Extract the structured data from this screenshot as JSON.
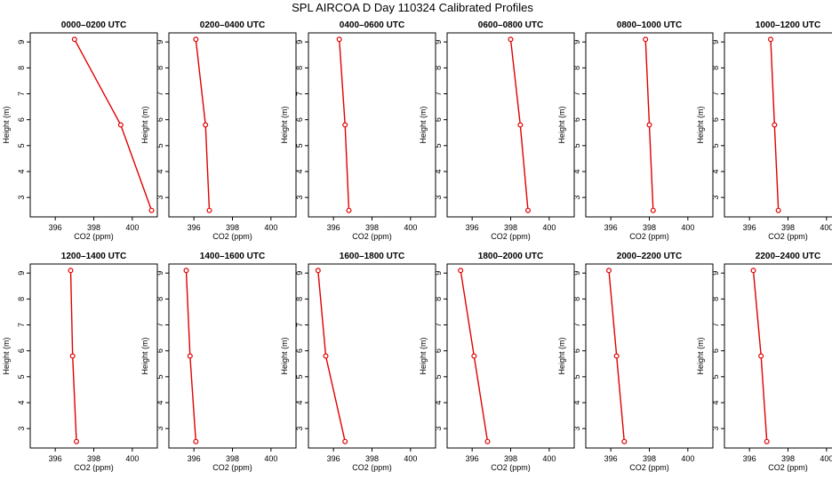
{
  "page": {
    "title": "SPL AIRCOA D  Day 110324  Calibrated Profiles"
  },
  "chart_data": [
    {
      "type": "line",
      "title": "0000–0200 UTC",
      "xlabel": "CO2 (ppm)",
      "ylabel": "Height (m)",
      "xlim": [
        394.7,
        401.3
      ],
      "ylim": [
        2.25,
        9.35
      ],
      "xticks": [
        396,
        398,
        400
      ],
      "yticks": [
        3,
        4,
        5,
        6,
        7,
        8,
        9
      ],
      "series": [
        {
          "x": [
            397.0,
            399.4,
            401.0
          ],
          "y": [
            9.1,
            5.8,
            2.5
          ]
        }
      ]
    },
    {
      "type": "line",
      "title": "0200–0400 UTC",
      "xlabel": "CO2 (ppm)",
      "ylabel": "Height (m)",
      "xlim": [
        394.7,
        401.3
      ],
      "ylim": [
        2.25,
        9.35
      ],
      "xticks": [
        396,
        398,
        400
      ],
      "yticks": [
        3,
        4,
        5,
        6,
        7,
        8,
        9
      ],
      "series": [
        {
          "x": [
            396.1,
            396.6,
            396.8
          ],
          "y": [
            9.1,
            5.8,
            2.5
          ]
        }
      ]
    },
    {
      "type": "line",
      "title": "0400–0600 UTC",
      "xlabel": "CO2 (ppm)",
      "ylabel": "Height (m)",
      "xlim": [
        394.7,
        401.3
      ],
      "ylim": [
        2.25,
        9.35
      ],
      "xticks": [
        396,
        398,
        400
      ],
      "yticks": [
        3,
        4,
        5,
        6,
        7,
        8,
        9
      ],
      "series": [
        {
          "x": [
            396.3,
            396.6,
            396.8
          ],
          "y": [
            9.1,
            5.8,
            2.5
          ]
        }
      ]
    },
    {
      "type": "line",
      "title": "0600–0800 UTC",
      "xlabel": "CO2 (ppm)",
      "ylabel": "Height (m)",
      "xlim": [
        394.7,
        401.3
      ],
      "ylim": [
        2.25,
        9.35
      ],
      "xticks": [
        396,
        398,
        400
      ],
      "yticks": [
        3,
        4,
        5,
        6,
        7,
        8,
        9
      ],
      "series": [
        {
          "x": [
            398.0,
            398.5,
            398.9
          ],
          "y": [
            9.1,
            5.8,
            2.5
          ]
        }
      ]
    },
    {
      "type": "line",
      "title": "0800–1000 UTC",
      "xlabel": "CO2 (ppm)",
      "ylabel": "Height (m)",
      "xlim": [
        394.7,
        401.3
      ],
      "ylim": [
        2.25,
        9.35
      ],
      "xticks": [
        396,
        398,
        400
      ],
      "yticks": [
        3,
        4,
        5,
        6,
        7,
        8,
        9
      ],
      "series": [
        {
          "x": [
            397.8,
            398.0,
            398.2
          ],
          "y": [
            9.1,
            5.8,
            2.5
          ]
        }
      ]
    },
    {
      "type": "line",
      "title": "1000–1200 UTC",
      "xlabel": "CO2 (ppm)",
      "ylabel": "Height (m)",
      "xlim": [
        394.7,
        401.3
      ],
      "ylim": [
        2.25,
        9.35
      ],
      "xticks": [
        396,
        398,
        400
      ],
      "yticks": [
        3,
        4,
        5,
        6,
        7,
        8,
        9
      ],
      "series": [
        {
          "x": [
            397.1,
            397.3,
            397.5
          ],
          "y": [
            9.1,
            5.8,
            2.5
          ]
        }
      ]
    },
    {
      "type": "line",
      "title": "1200–1400 UTC",
      "xlabel": "CO2 (ppm)",
      "ylabel": "Height (m)",
      "xlim": [
        394.7,
        401.3
      ],
      "ylim": [
        2.25,
        9.35
      ],
      "xticks": [
        396,
        398,
        400
      ],
      "yticks": [
        3,
        4,
        5,
        6,
        7,
        8,
        9
      ],
      "series": [
        {
          "x": [
            396.8,
            396.9,
            397.1
          ],
          "y": [
            9.1,
            5.8,
            2.5
          ]
        }
      ]
    },
    {
      "type": "line",
      "title": "1400–1600 UTC",
      "xlabel": "CO2 (ppm)",
      "ylabel": "Height (m)",
      "xlim": [
        394.7,
        401.3
      ],
      "ylim": [
        2.25,
        9.35
      ],
      "xticks": [
        396,
        398,
        400
      ],
      "yticks": [
        3,
        4,
        5,
        6,
        7,
        8,
        9
      ],
      "series": [
        {
          "x": [
            395.6,
            395.8,
            396.1
          ],
          "y": [
            9.1,
            5.8,
            2.5
          ]
        }
      ]
    },
    {
      "type": "line",
      "title": "1600–1800 UTC",
      "xlabel": "CO2 (ppm)",
      "ylabel": "Height (m)",
      "xlim": [
        394.7,
        401.3
      ],
      "ylim": [
        2.25,
        9.35
      ],
      "xticks": [
        396,
        398,
        400
      ],
      "yticks": [
        3,
        4,
        5,
        6,
        7,
        8,
        9
      ],
      "series": [
        {
          "x": [
            395.2,
            395.6,
            396.6
          ],
          "y": [
            9.1,
            5.8,
            2.5
          ]
        }
      ]
    },
    {
      "type": "line",
      "title": "1800–2000 UTC",
      "xlabel": "CO2 (ppm)",
      "ylabel": "Height (m)",
      "xlim": [
        394.7,
        401.3
      ],
      "ylim": [
        2.25,
        9.35
      ],
      "xticks": [
        396,
        398,
        400
      ],
      "yticks": [
        3,
        4,
        5,
        6,
        7,
        8,
        9
      ],
      "series": [
        {
          "x": [
            395.4,
            396.1,
            396.8
          ],
          "y": [
            9.1,
            5.8,
            2.5
          ]
        }
      ]
    },
    {
      "type": "line",
      "title": "2000–2200 UTC",
      "xlabel": "CO2 (ppm)",
      "ylabel": "Height (m)",
      "xlim": [
        394.7,
        401.3
      ],
      "ylim": [
        2.25,
        9.35
      ],
      "xticks": [
        396,
        398,
        400
      ],
      "yticks": [
        3,
        4,
        5,
        6,
        7,
        8,
        9
      ],
      "series": [
        {
          "x": [
            395.9,
            396.3,
            396.7
          ],
          "y": [
            9.1,
            5.8,
            2.5
          ]
        }
      ]
    },
    {
      "type": "line",
      "title": "2200–2400 UTC",
      "xlabel": "CO2 (ppm)",
      "ylabel": "Height (m)",
      "xlim": [
        394.7,
        401.3
      ],
      "ylim": [
        2.25,
        9.35
      ],
      "xticks": [
        396,
        398,
        400
      ],
      "yticks": [
        3,
        4,
        5,
        6,
        7,
        8,
        9
      ],
      "series": [
        {
          "x": [
            396.2,
            396.6,
            396.9
          ],
          "y": [
            9.1,
            5.8,
            2.5
          ]
        }
      ]
    }
  ],
  "colors": {
    "series": "#e00000",
    "axis": "#000000"
  }
}
